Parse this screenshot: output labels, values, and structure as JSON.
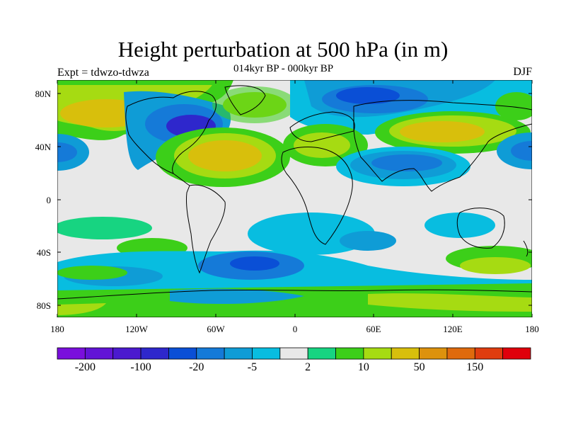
{
  "title": "Height perturbation at 500 hPa (in m)",
  "subtitle": "014kyr BP - 000kyr BP",
  "left_label": "Expt = tdwzo-tdwza",
  "right_label": "DJF",
  "lat_ticks": [
    "80N",
    "40N",
    "0",
    "40S",
    "80S"
  ],
  "lon_ticks": [
    "180",
    "120W",
    "60W",
    "0",
    "60E",
    "120E",
    "180"
  ],
  "colorbar": {
    "colors": [
      "#7a0fdc",
      "#6214d6",
      "#4b19cf",
      "#2e27cc",
      "#0a4fd6",
      "#157ad8",
      "#0f9cd6",
      "#08bde0",
      "#e8e8e8",
      "#17d481",
      "#3ccf19",
      "#a6db12",
      "#d8bf0c",
      "#dd920d",
      "#df6a0d",
      "#df3d0f",
      "#e0000b"
    ],
    "labels": [
      "-200",
      "-100",
      "-20",
      "-5",
      "2",
      "10",
      "50",
      "150"
    ]
  },
  "map_colors": {
    "neutral": "#e8e8e8",
    "coast": "#000000"
  }
}
